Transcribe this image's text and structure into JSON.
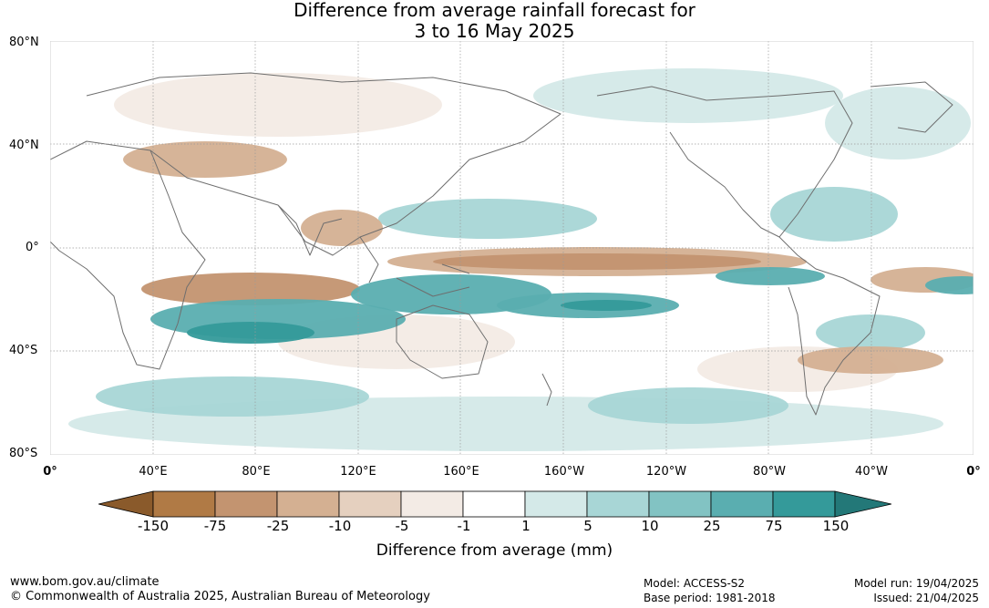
{
  "title": {
    "line1": "Difference from average rainfall forecast for",
    "line2": "3 to 16 May 2025"
  },
  "lat_labels": [
    "80°N",
    "40°N",
    "0°",
    "40°S",
    "80°S"
  ],
  "lon_labels": [
    "0°",
    "40°E",
    "80°E",
    "120°E",
    "160°E",
    "160°W",
    "120°W",
    "80°W",
    "40°W",
    "0°"
  ],
  "colorbar": {
    "ticks": [
      "-150",
      "-75",
      "-25",
      "-10",
      "-5",
      "-1",
      "1",
      "5",
      "10",
      "25",
      "75",
      "150"
    ],
    "colors": [
      "#8a5a2b",
      "#b07a45",
      "#c39470",
      "#d4b092",
      "#e5d0bf",
      "#f3ebe5",
      "#ffffff",
      "#d4e9e8",
      "#a8d6d6",
      "#82c3c3",
      "#5aaeb0",
      "#349a9a",
      "#237878"
    ],
    "label": "Difference from average (mm)"
  },
  "footer": {
    "url": "www.bom.gov.au/climate",
    "copyright": "© Commonwealth of Australia 2025, Australian Bureau of Meteorology",
    "model": "Model: ACCESS-S2",
    "base_period": "Base period: 1981-2018",
    "model_run": "Model run: 19/04/2025",
    "issued": "Issued: 21/04/2025"
  },
  "map_colors": {
    "dry_light": "#f3ebe5",
    "dry_mid": "#d4b092",
    "dry_strong": "#c39470",
    "dry_vstrong": "#b07a45",
    "wet_light": "#d4e9e8",
    "wet_mid": "#a8d6d6",
    "wet_strong": "#5aaeb0",
    "wet_vstrong": "#349a9a",
    "coast": "#6e6e6e",
    "grid": "#9a9a9a"
  }
}
